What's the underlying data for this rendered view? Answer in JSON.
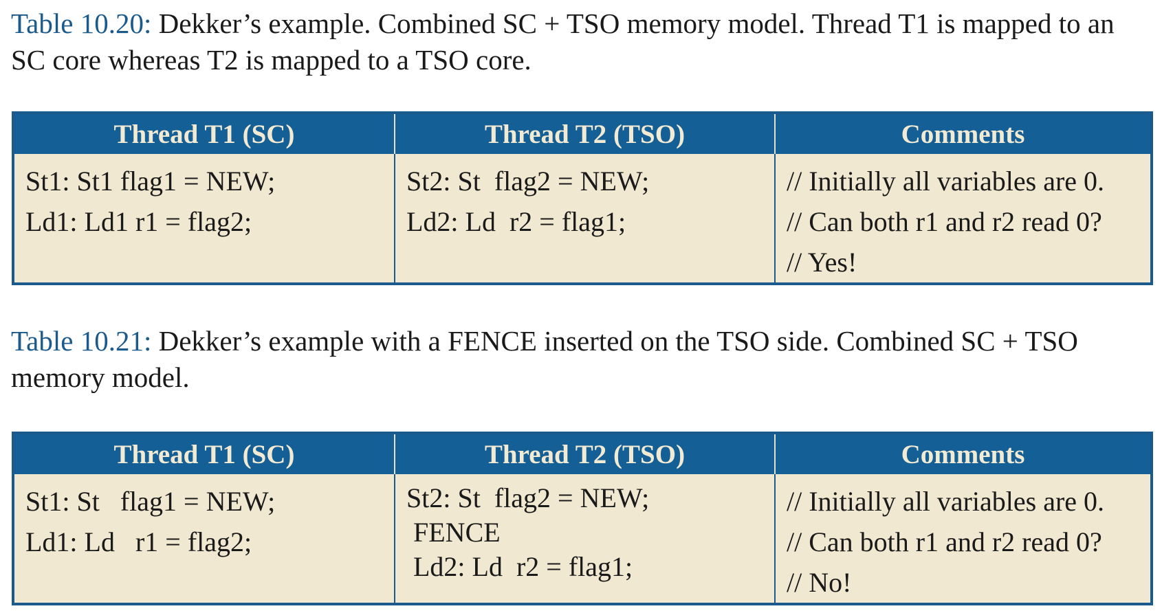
{
  "tables": [
    {
      "caption_label": "Table 10.20:",
      "caption_text": " Dekker’s example. Combined SC + TSO memory model. Thread T1 is mapped to an SC core whereas T2 is mapped to a TSO core.",
      "headers": [
        "Thread T1 (SC)",
        "Thread T2 (TSO)",
        "Comments"
      ],
      "t1": [
        "St1: St1 flag1 = NEW;",
        "Ld1: Ld1 r1 = flag2;"
      ],
      "t2": [
        "St2: St  flag2 = NEW;",
        "Ld2: Ld  r2 = flag1;"
      ],
      "comments": [
        "// Initially all variables are 0.",
        "// Can both r1 and r2 read 0?",
        "// Yes!"
      ]
    },
    {
      "caption_label": "Table 10.21:",
      "caption_text": " Dekker’s example with a FENCE inserted on the TSO side. Combined SC + TSO memory model.",
      "headers": [
        "Thread T1 (SC)",
        "Thread T2 (TSO)",
        "Comments"
      ],
      "t1": [
        "St1: St   flag1 = NEW;",
        "Ld1: Ld   r1 = flag2;"
      ],
      "t2": [
        "St2: St  flag2 = NEW;",
        " FENCE",
        " Ld2: Ld  r2 = flag1;"
      ],
      "comments": [
        "// Initially all variables are 0.",
        "// Can both r1 and r2 read 0?",
        "// No!"
      ]
    }
  ]
}
